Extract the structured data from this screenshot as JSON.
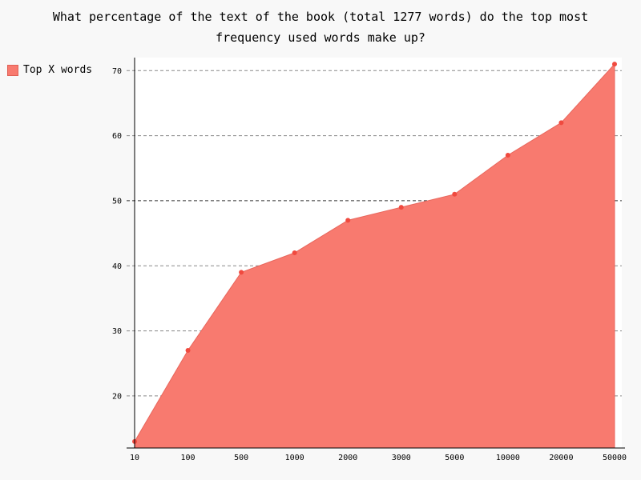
{
  "chart_data": {
    "type": "area",
    "title_line1": "What percentage of the text of the book (total 1277 words) do the top most",
    "title_line2": "frequency used words make up?",
    "categories": [
      "10",
      "100",
      "500",
      "1000",
      "2000",
      "3000",
      "5000",
      "10000",
      "20000",
      "50000"
    ],
    "series": [
      {
        "name": "Top X words",
        "values": [
          13,
          27,
          39,
          42,
          47,
          49,
          51,
          57,
          62,
          71
        ]
      }
    ],
    "y_ticks": [
      "20",
      "30",
      "40",
      "50",
      "60",
      "70"
    ],
    "ylim": [
      12,
      72
    ],
    "grid": true,
    "legend_position": "top-left",
    "colors": {
      "fill": "#f87a6f",
      "point": "#f04a3f",
      "grid": "#888888"
    }
  }
}
